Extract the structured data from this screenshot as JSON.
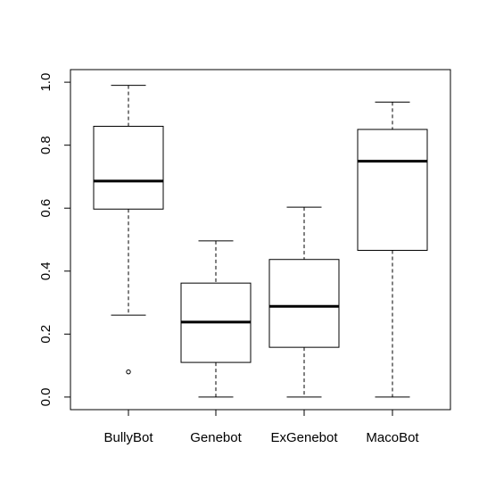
{
  "chart_data": {
    "type": "box",
    "categories": [
      "BullyBot",
      "Genebot",
      "ExGenebot",
      "MacoBot"
    ],
    "series": [
      {
        "category": "BullyBot",
        "whisker_low": 0.26,
        "q1": 0.597,
        "median": 0.686,
        "q3": 0.86,
        "whisker_high": 0.99,
        "outliers": [
          0.08
        ]
      },
      {
        "category": "Genebot",
        "whisker_low": 0.0,
        "q1": 0.11,
        "median": 0.238,
        "q3": 0.362,
        "whisker_high": 0.496,
        "outliers": []
      },
      {
        "category": "ExGenebot",
        "whisker_low": 0.0,
        "q1": 0.158,
        "median": 0.288,
        "q3": 0.437,
        "whisker_high": 0.603,
        "outliers": []
      },
      {
        "category": "MacoBot",
        "whisker_low": 0.0,
        "q1": 0.466,
        "median": 0.749,
        "q3": 0.85,
        "whisker_high": 0.937,
        "outliers": []
      }
    ],
    "y_ticks": [
      "0.0",
      "0.2",
      "0.4",
      "0.6",
      "0.8",
      "1.0"
    ],
    "ylim": [
      -0.04,
      1.04
    ],
    "title": "",
    "xlabel": "",
    "ylabel": "",
    "grid": false,
    "colors": {
      "line": "#000000",
      "box_fill": "#ffffff"
    }
  }
}
